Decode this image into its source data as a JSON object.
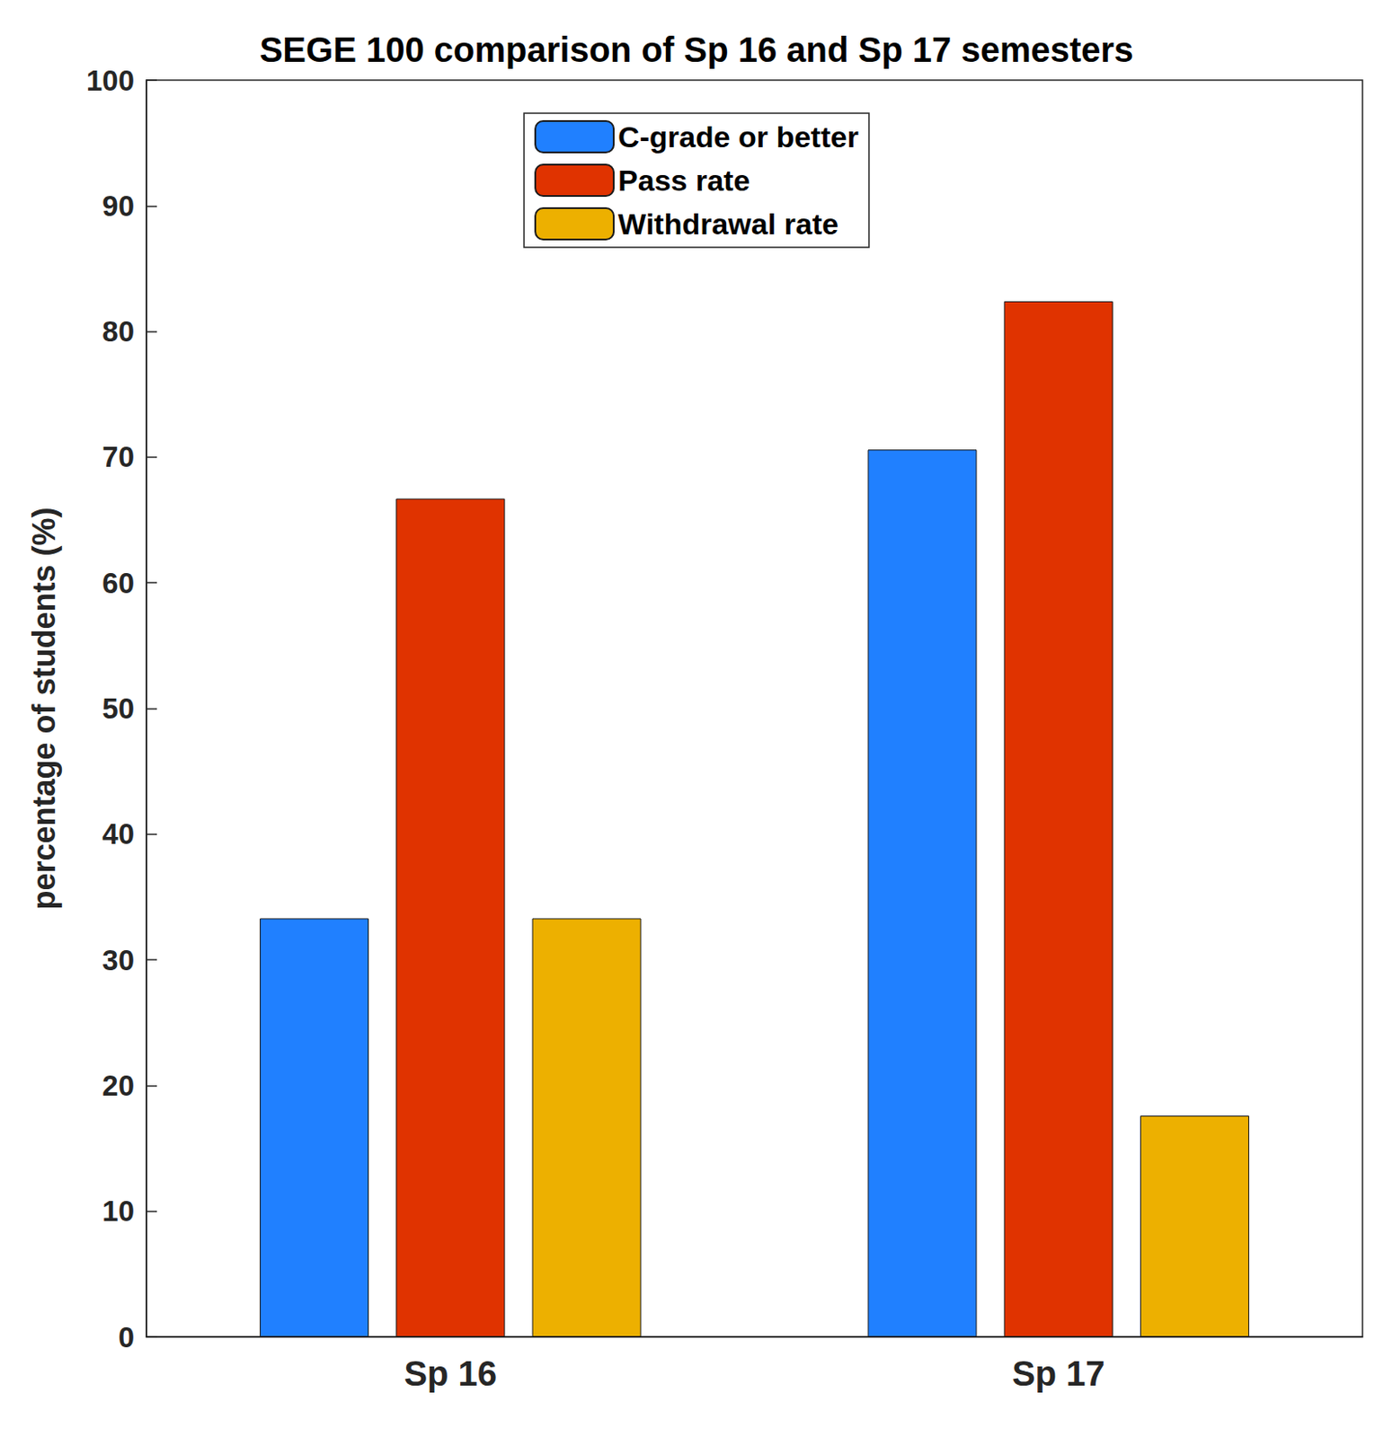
{
  "chart_data": {
    "type": "bar",
    "title": "SEGE 100 comparison of Sp 16 and Sp 17 semesters",
    "categories": [
      "Sp 16",
      "Sp 17"
    ],
    "series": [
      {
        "name": "C-grade or better",
        "color": "#2080ff",
        "values": [
          33.3,
          70.6
        ]
      },
      {
        "name": "Pass rate",
        "color": "#e03300",
        "values": [
          66.7,
          82.4
        ]
      },
      {
        "name": "Withdrawal rate",
        "color": "#edb000",
        "values": [
          33.3,
          17.6
        ]
      }
    ],
    "ylabel": "percentage of students (%)",
    "ylim": [
      0,
      100
    ],
    "yticks": [
      0,
      10,
      20,
      30,
      40,
      50,
      60,
      70,
      80,
      90,
      100
    ],
    "grid": false,
    "legend": "top"
  }
}
